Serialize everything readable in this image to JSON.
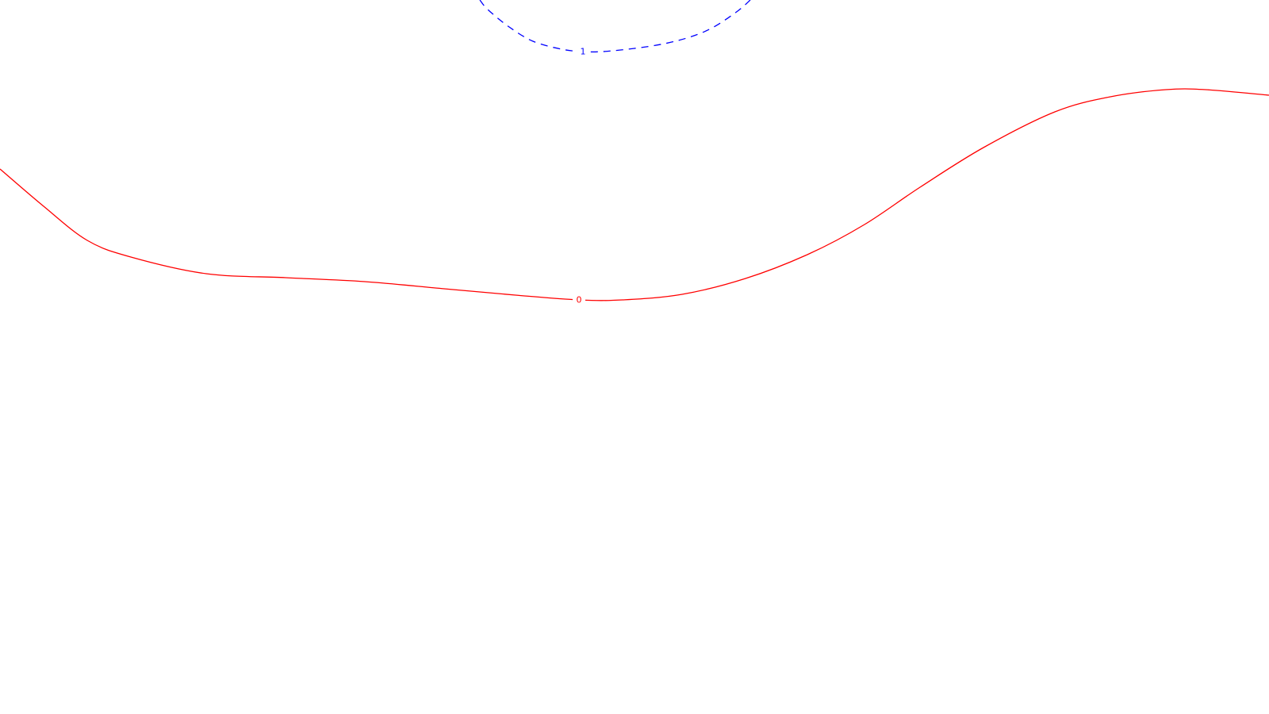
{
  "chart_data": {
    "type": "line",
    "title": "",
    "xlabel": "",
    "ylabel": "",
    "grid": false,
    "legend": "none",
    "contours": [
      {
        "level_label": "1",
        "color": "#0000ff",
        "style": "dashed",
        "points": [
          [
            605,
            0
          ],
          [
            615,
            12
          ],
          [
            642,
            34
          ],
          [
            672,
            52
          ],
          [
            708,
            62
          ],
          [
            735,
            65
          ],
          [
            760,
            65
          ],
          [
            800,
            61
          ],
          [
            838,
            55
          ],
          [
            872,
            46
          ],
          [
            900,
            34
          ],
          [
            930,
            14
          ],
          [
            946,
            0
          ]
        ]
      },
      {
        "level_label": "0",
        "color": "#ff0000",
        "style": "solid",
        "points": [
          [
            0,
            213
          ],
          [
            55,
            260
          ],
          [
            110,
            303
          ],
          [
            165,
            324
          ],
          [
            260,
            345
          ],
          [
            360,
            350
          ],
          [
            460,
            355
          ],
          [
            560,
            364
          ],
          [
            650,
            372
          ],
          [
            730,
            378
          ],
          [
            785,
            378
          ],
          [
            860,
            371
          ],
          [
            940,
            351
          ],
          [
            1020,
            320
          ],
          [
            1090,
            283
          ],
          [
            1160,
            236
          ],
          [
            1240,
            186
          ],
          [
            1330,
            141
          ],
          [
            1400,
            122
          ],
          [
            1470,
            113
          ],
          [
            1520,
            113
          ],
          [
            1600,
            120
          ]
        ]
      }
    ]
  }
}
